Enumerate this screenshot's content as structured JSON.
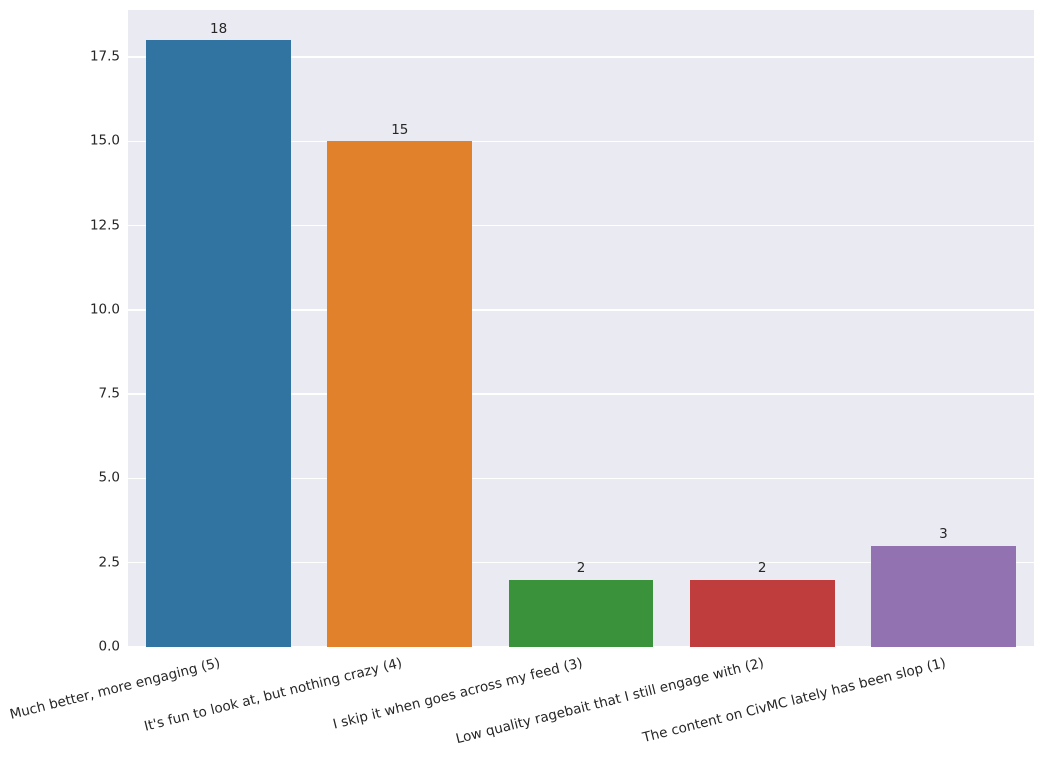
{
  "chart_data": {
    "type": "bar",
    "title": "",
    "xlabel": "",
    "ylabel": "",
    "categories": [
      "Much better, more engaging (5)",
      "It's fun to look at, but nothing crazy (4)",
      "I skip it when goes across my feed (3)",
      "Low quality ragebait that I still engage with (2)",
      "The content on CivMC lately has been slop (1)"
    ],
    "values": [
      18,
      15,
      2,
      2,
      3
    ],
    "bar_value_labels": [
      "18",
      "15",
      "2",
      "2",
      "3"
    ],
    "bar_colors": [
      "#3274a1",
      "#e1812c",
      "#3a923a",
      "#c03d3e",
      "#9372b2"
    ],
    "ylim": [
      0,
      18.9
    ],
    "yticks": [
      0.0,
      2.5,
      5.0,
      7.5,
      10.0,
      12.5,
      15.0,
      17.5
    ],
    "ytick_labels": [
      "0.0",
      "2.5",
      "5.0",
      "7.5",
      "10.0",
      "12.5",
      "15.0",
      "17.5"
    ],
    "grid": true,
    "legend": false,
    "style": {
      "plot_background": "#eaeaf2",
      "grid_color": "#ffffff",
      "figure_background": "#ffffff",
      "text_color": "#262626",
      "xtick_rotation_deg": -14
    }
  }
}
